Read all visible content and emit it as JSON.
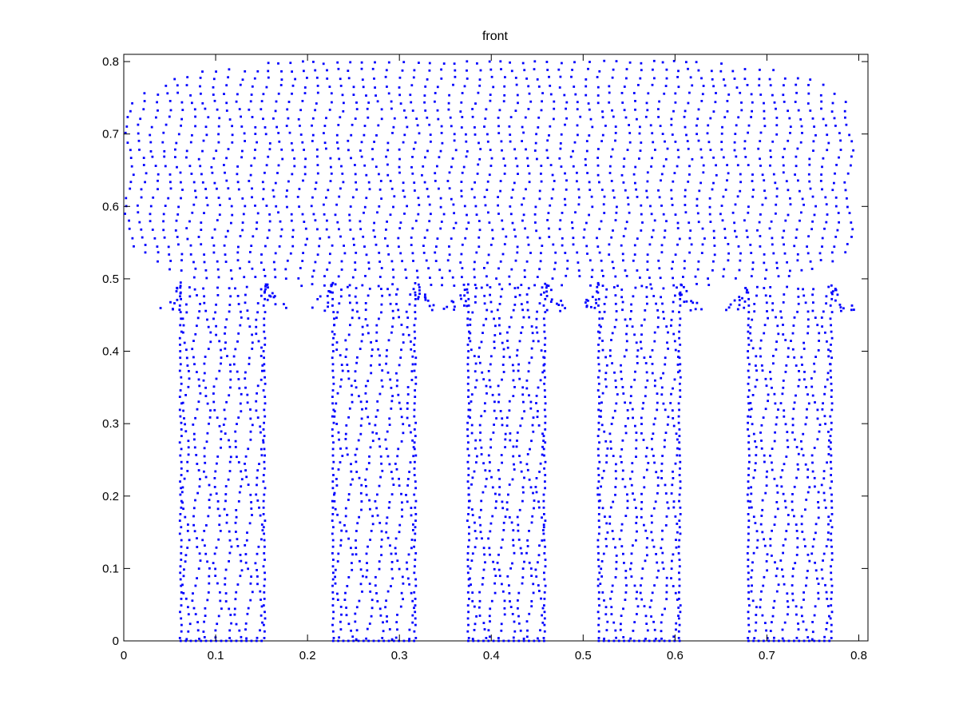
{
  "chart_data": {
    "type": "scatter",
    "title": "front",
    "xlabel": "",
    "ylabel": "",
    "xlim": [
      0,
      0.81
    ],
    "ylim": [
      0,
      0.81
    ],
    "xticks": [
      "0",
      "0.1",
      "0.2",
      "0.3",
      "0.4",
      "0.5",
      "0.6",
      "0.7",
      "0.8"
    ],
    "yticks": [
      "0",
      "0.1",
      "0.2",
      "0.3",
      "0.4",
      "0.5",
      "0.6",
      "0.7",
      "0.8"
    ],
    "xtick_values": [
      0,
      0.1,
      0.2,
      0.3,
      0.4,
      0.5,
      0.6,
      0.7,
      0.8
    ],
    "ytick_values": [
      0,
      0.1,
      0.2,
      0.3,
      0.4,
      0.5,
      0.6,
      0.7,
      0.8
    ],
    "grid": false,
    "marker_color": "#0000ff",
    "shape": {
      "seat": {
        "x_range": [
          0.0,
          0.8
        ],
        "y_range": [
          0.49,
          0.805
        ]
      },
      "legs": [
        {
          "x_range": [
            0.062,
            0.153
          ],
          "y_range": [
            0,
            0.49
          ]
        },
        {
          "x_range": [
            0.228,
            0.317
          ],
          "y_range": [
            0,
            0.49
          ]
        },
        {
          "x_range": [
            0.375,
            0.458
          ],
          "y_range": [
            0,
            0.49
          ]
        },
        {
          "x_range": [
            0.517,
            0.605
          ],
          "y_range": [
            0,
            0.49
          ]
        },
        {
          "x_range": [
            0.68,
            0.77
          ],
          "y_range": [
            0,
            0.49
          ]
        }
      ]
    }
  }
}
